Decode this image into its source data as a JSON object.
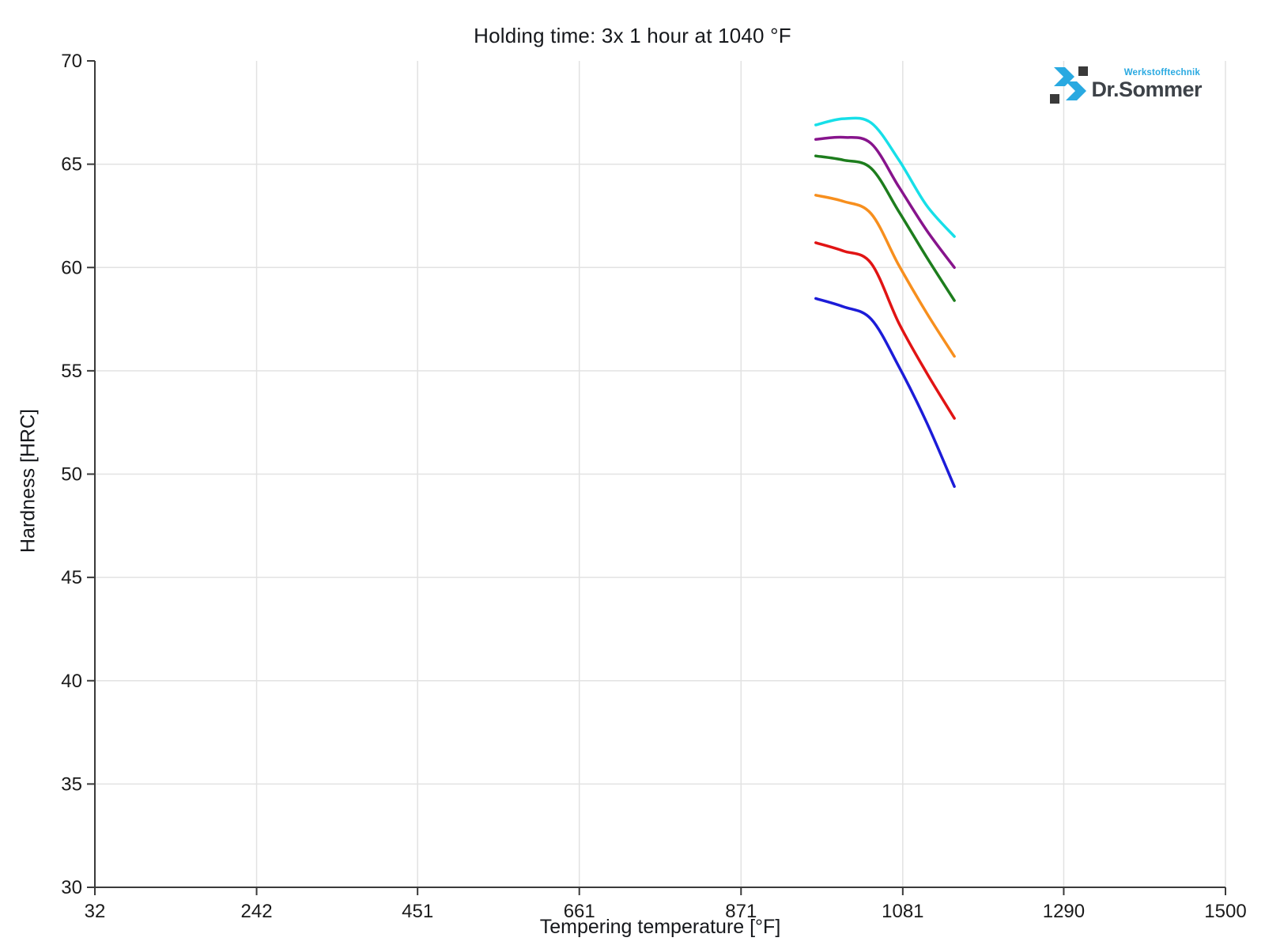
{
  "header": {
    "title": "Holding time: 3x 1 hour at  1040 °F"
  },
  "logo": {
    "brand": "Dr.Sommer",
    "tagline": "Werkstofftechnik",
    "brand_color": "#3d4248",
    "accent_color": "#29a9e1",
    "square_color": "#3a3a3a"
  },
  "axes_style": {
    "axis_line_color": "#3a3a3a",
    "grid_color": "#e2e2e2",
    "tick_label_color": "#1a1a1a"
  },
  "chart_data": {
    "type": "line",
    "title": "Holding time: 3x 1 hour at  1040 °F",
    "xlabel": "Tempering temperature [°F]",
    "ylabel": "Hardness [HRC]",
    "xlim": [
      32,
      1500
    ],
    "ylim": [
      30,
      70
    ],
    "x_ticks": [
      32,
      242,
      451,
      661,
      871,
      1081,
      1290,
      1500
    ],
    "y_ticks": [
      30,
      35,
      40,
      45,
      50,
      55,
      60,
      65,
      70
    ],
    "grid": true,
    "legend_position": "none",
    "x": [
      968,
      1004,
      1040,
      1076,
      1112,
      1148
    ],
    "series": [
      {
        "name": "curve-cyan",
        "color": "#17dfe8",
        "values": [
          66.9,
          67.2,
          67.0,
          65.2,
          63.0,
          61.5
        ]
      },
      {
        "name": "curve-purple",
        "color": "#87148c",
        "values": [
          66.2,
          66.3,
          66.0,
          63.9,
          61.8,
          60.0
        ]
      },
      {
        "name": "curve-green",
        "color": "#1d7d1d",
        "values": [
          65.4,
          65.2,
          64.8,
          62.7,
          60.5,
          58.4
        ]
      },
      {
        "name": "curve-orange",
        "color": "#f78f1e",
        "values": [
          63.5,
          63.2,
          62.6,
          60.1,
          57.8,
          55.7
        ]
      },
      {
        "name": "curve-red",
        "color": "#e11414",
        "values": [
          61.2,
          60.8,
          60.2,
          57.3,
          54.9,
          52.7
        ]
      },
      {
        "name": "curve-blue",
        "color": "#1c1cd8",
        "values": [
          58.5,
          58.1,
          57.5,
          55.2,
          52.5,
          49.4
        ]
      }
    ]
  }
}
